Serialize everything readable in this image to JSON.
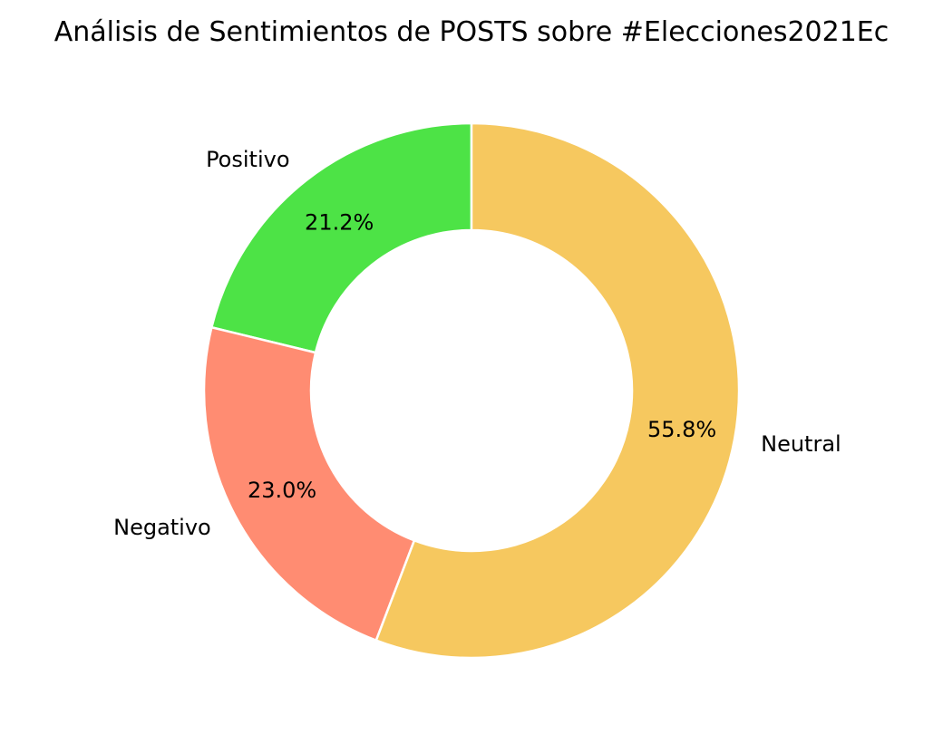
{
  "chart_data": {
    "type": "pie",
    "style": "donut",
    "title": "Análisis de Sentimientos de POSTS sobre #Elecciones2021Ec",
    "slices": [
      {
        "label": "Positivo",
        "value": 21.2,
        "value_label": "21.2%",
        "color": "#4de346"
      },
      {
        "label": "Negativo",
        "value": 23.0,
        "value_label": "23.0%",
        "color": "#ff8c72"
      },
      {
        "label": "Neutral",
        "value": 55.8,
        "value_label": "55.8%",
        "color": "#f6c85f"
      }
    ],
    "start_angle_deg": 90,
    "direction": "counterclockwise",
    "edge_color": "#ffffff",
    "legend": "none"
  }
}
